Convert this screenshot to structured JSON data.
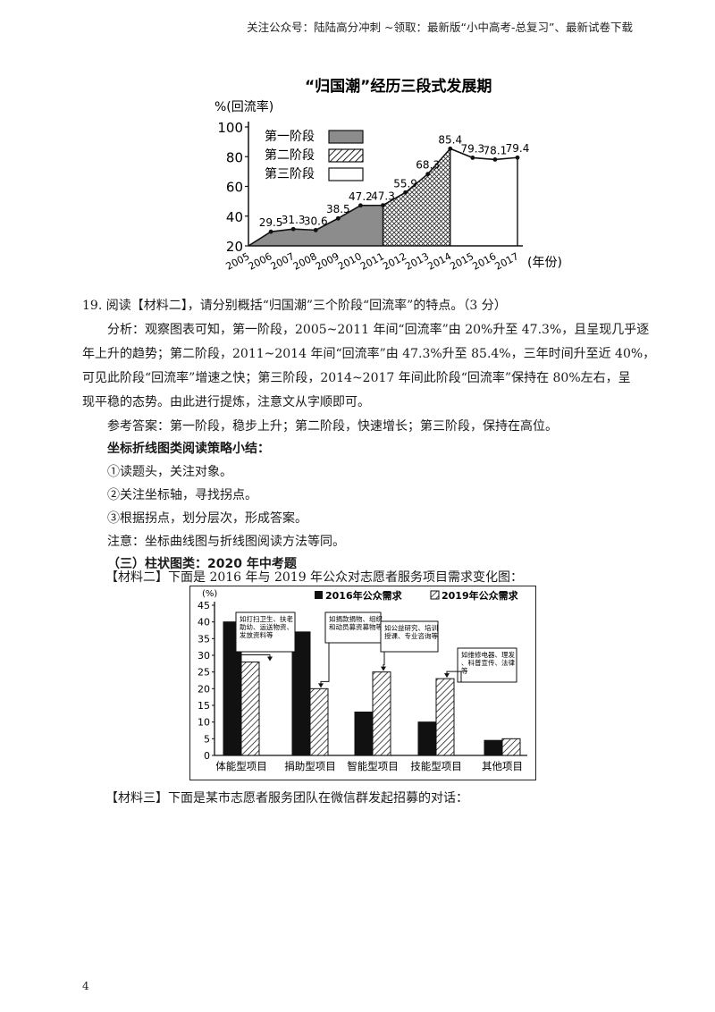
{
  "header": {
    "text": "关注公众号：陆陆高分冲刺 ~领取：最新版“小中高考-总复习”、最新试卷下载"
  },
  "chart_data": [
    {
      "type": "area",
      "title": "“归国潮”经历三段式发展期",
      "ylabel": "%(回流率)",
      "xlabel": "(年份)",
      "ylim": [
        20,
        100
      ],
      "yticks": [
        20,
        40,
        60,
        80,
        100
      ],
      "x": [
        "2005",
        "2006",
        "2007",
        "2008",
        "2009",
        "2010",
        "2011",
        "2012",
        "2013",
        "2014",
        "2015",
        "2016",
        "2017"
      ],
      "values": [
        20,
        29.5,
        31.3,
        30.6,
        38.5,
        47.2,
        47.3,
        55.9,
        68.3,
        85.4,
        79.3,
        78.1,
        79.4
      ],
      "value_labels": [
        "",
        "29.5",
        "31.3",
        "30.6",
        "38.5",
        "47.2",
        "47.3",
        "55.9",
        "68.3",
        "85.4",
        "79.3",
        "78.1",
        "79.4"
      ],
      "legend": [
        "第一阶段",
        "第二阶段",
        "第三阶段"
      ],
      "legend_position": "top-left",
      "stages": [
        {
          "name": "第一阶段",
          "from": "2005",
          "to": "2011",
          "fill": "solid-gray"
        },
        {
          "name": "第二阶段",
          "from": "2011",
          "to": "2014",
          "fill": "hatched"
        },
        {
          "name": "第三阶段",
          "from": "2014",
          "to": "2017",
          "fill": "white"
        }
      ]
    },
    {
      "type": "bar",
      "ylabel": "(%)",
      "ylim": [
        0,
        45
      ],
      "yticks": [
        0,
        5,
        10,
        15,
        20,
        25,
        30,
        35,
        40,
        45
      ],
      "categories": [
        "体能型项目",
        "捐助型项目",
        "智能型项目",
        "技能型项目",
        "其他项目"
      ],
      "series": [
        {
          "name": "2016年公众需求",
          "values": [
            40,
            37,
            13,
            10,
            4.5
          ]
        },
        {
          "name": "2019年公众需求",
          "values": [
            28,
            20,
            25,
            23,
            5
          ]
        }
      ],
      "legend_position": "top-right",
      "annotations": [
        "如打扫卫生、扶老助幼、运送物资、发放资料等",
        "如捐款捐物、组织和动员募资募物等",
        "如公益研究、培训授课、专业咨询等",
        "如维修电器、理发、科普宣传、法律等"
      ]
    }
  ],
  "body": {
    "q19": "19. 阅读【材料二】，请分别概括“归国潮”三个阶段“回流率”的特点。（3 分）",
    "analysis": [
      "分析：观察图表可知，第一阶段，2005~2011 年间“回流率”由 20%升至 47.3%，且呈现几乎逐",
      "年上升的趋势；第二阶段，2011~2014 年间“回流率”由 47.3%升至 85.4%，三年时间升至近 40%，",
      "可见此阶段“回流率”增速之快；第三阶段，2014~2017 年间此阶段“回流率”保持在 80%左右，呈",
      "现平稳的态势。由此进行提炼，注意文从字顺即可。"
    ],
    "answer": "参考答案：第一阶段，稳步上升；第二阶段，快速增长；第三阶段，保持在高位。",
    "summary_title": "坐标折线图类阅读策略小结：",
    "steps": [
      "①读题头，关注对象。",
      "②关注坐标轴，寻找拐点。",
      "③根据拐点，划分层次，形成答案。"
    ],
    "note": "注意：坐标曲线图与折线图阅读方法等同。",
    "section3": "（三）柱状图类：2020 年中考题",
    "material2": "【材料二】下面是 2016 年与 2019 年公众对志愿者服务项目需求变化图：",
    "material3": "【材料三】下面是某市志愿者服务团队在微信群发起招募的对话："
  },
  "page_number": "4"
}
